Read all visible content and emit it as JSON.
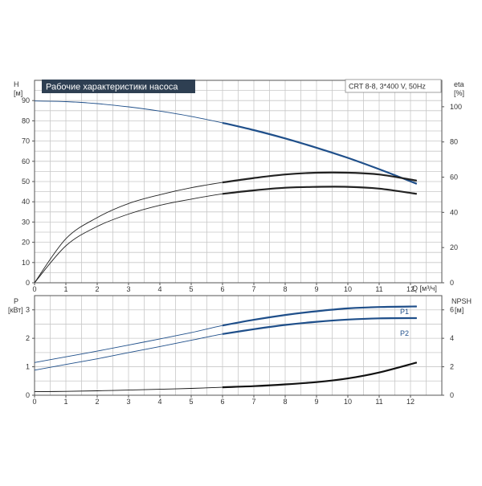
{
  "chart_data": [
    {
      "type": "line",
      "title": "Рабочие характеристики насоса",
      "subtitle": "CRT 8-8, 3*400 V, 50Hz",
      "xlabel": "Q [м³/ч]",
      "xlim": [
        0,
        13
      ],
      "x_ticks": [
        "0",
        "1",
        "2",
        "3",
        "4",
        "5",
        "6",
        "7",
        "8",
        "9",
        "10",
        "11",
        "12"
      ],
      "left_axis": {
        "label_top": "H",
        "label_unit": "[м]",
        "lim": [
          0,
          100
        ],
        "ticks": [
          "0",
          "10",
          "20",
          "30",
          "40",
          "50",
          "60",
          "70",
          "80",
          "90"
        ]
      },
      "right_axis": {
        "label_top": "eta",
        "label_unit": "[%]",
        "lim": [
          0,
          115
        ],
        "ticks": [
          "0",
          "20",
          "40",
          "60",
          "80",
          "100"
        ]
      },
      "grid": true,
      "series": [
        {
          "axis": "left",
          "color": "#1f4f8a",
          "x": [
            0,
            1,
            2,
            3,
            4,
            5,
            6,
            7,
            8,
            9,
            10,
            11,
            12.2
          ],
          "values": [
            89.8,
            89.5,
            88.5,
            86.9,
            84.8,
            82.2,
            79.0,
            75.4,
            71.3,
            66.7,
            61.7,
            56.1,
            48.9
          ]
        },
        {
          "axis": "right",
          "color": "#222222",
          "x": [
            0,
            1,
            2,
            3,
            4,
            5,
            6,
            7,
            8,
            9,
            10,
            11,
            12.2
          ],
          "values": [
            0,
            25,
            37,
            45,
            50,
            54,
            57,
            59.5,
            61.5,
            62.5,
            62.5,
            61.5,
            58
          ]
        },
        {
          "axis": "right",
          "color": "#222222",
          "x": [
            0,
            1,
            2,
            3,
            4,
            5,
            6,
            7,
            8,
            9,
            10,
            11,
            12.2
          ],
          "values": [
            0,
            21,
            32,
            39,
            44,
            47.5,
            50.5,
            52.5,
            54,
            54.5,
            54.5,
            53.5,
            50.5
          ]
        }
      ]
    },
    {
      "type": "line",
      "xlim": [
        0,
        13
      ],
      "x_ticks": [
        "0",
        "1",
        "2",
        "3",
        "4",
        "5",
        "6",
        "7",
        "8",
        "9",
        "10",
        "11",
        "12"
      ],
      "left_axis": {
        "label_top": "P",
        "label_unit": "[кВт]",
        "lim": [
          0,
          3.5
        ],
        "ticks": [
          "0",
          "1",
          "2",
          "3"
        ]
      },
      "right_axis": {
        "label_top": "NPSH",
        "label_unit": "[м]",
        "lim": [
          0,
          7
        ],
        "ticks": [
          "0",
          "2",
          "4",
          "6"
        ]
      },
      "grid": true,
      "series": [
        {
          "name": "P1",
          "axis": "left",
          "color": "#1f4f8a",
          "x": [
            0,
            1,
            2,
            3,
            4,
            5,
            6,
            7,
            8,
            9,
            10,
            11,
            12.2
          ],
          "values": [
            1.15,
            1.35,
            1.55,
            1.76,
            1.98,
            2.2,
            2.45,
            2.65,
            2.82,
            2.95,
            3.05,
            3.1,
            3.12
          ]
        },
        {
          "name": "P2",
          "axis": "left",
          "color": "#1f4f8a",
          "x": [
            0,
            1,
            2,
            3,
            4,
            5,
            6,
            7,
            8,
            9,
            10,
            11,
            12.2
          ],
          "values": [
            0.88,
            1.08,
            1.28,
            1.5,
            1.71,
            1.93,
            2.15,
            2.32,
            2.47,
            2.58,
            2.66,
            2.7,
            2.71
          ]
        },
        {
          "axis": "right",
          "color": "#111111",
          "x": [
            0,
            1,
            2,
            3,
            4,
            5,
            6,
            7,
            8,
            9,
            10,
            11,
            12.2
          ],
          "values": [
            0.25,
            0.27,
            0.31,
            0.36,
            0.42,
            0.48,
            0.56,
            0.64,
            0.76,
            0.92,
            1.18,
            1.6,
            2.3
          ]
        }
      ]
    }
  ]
}
